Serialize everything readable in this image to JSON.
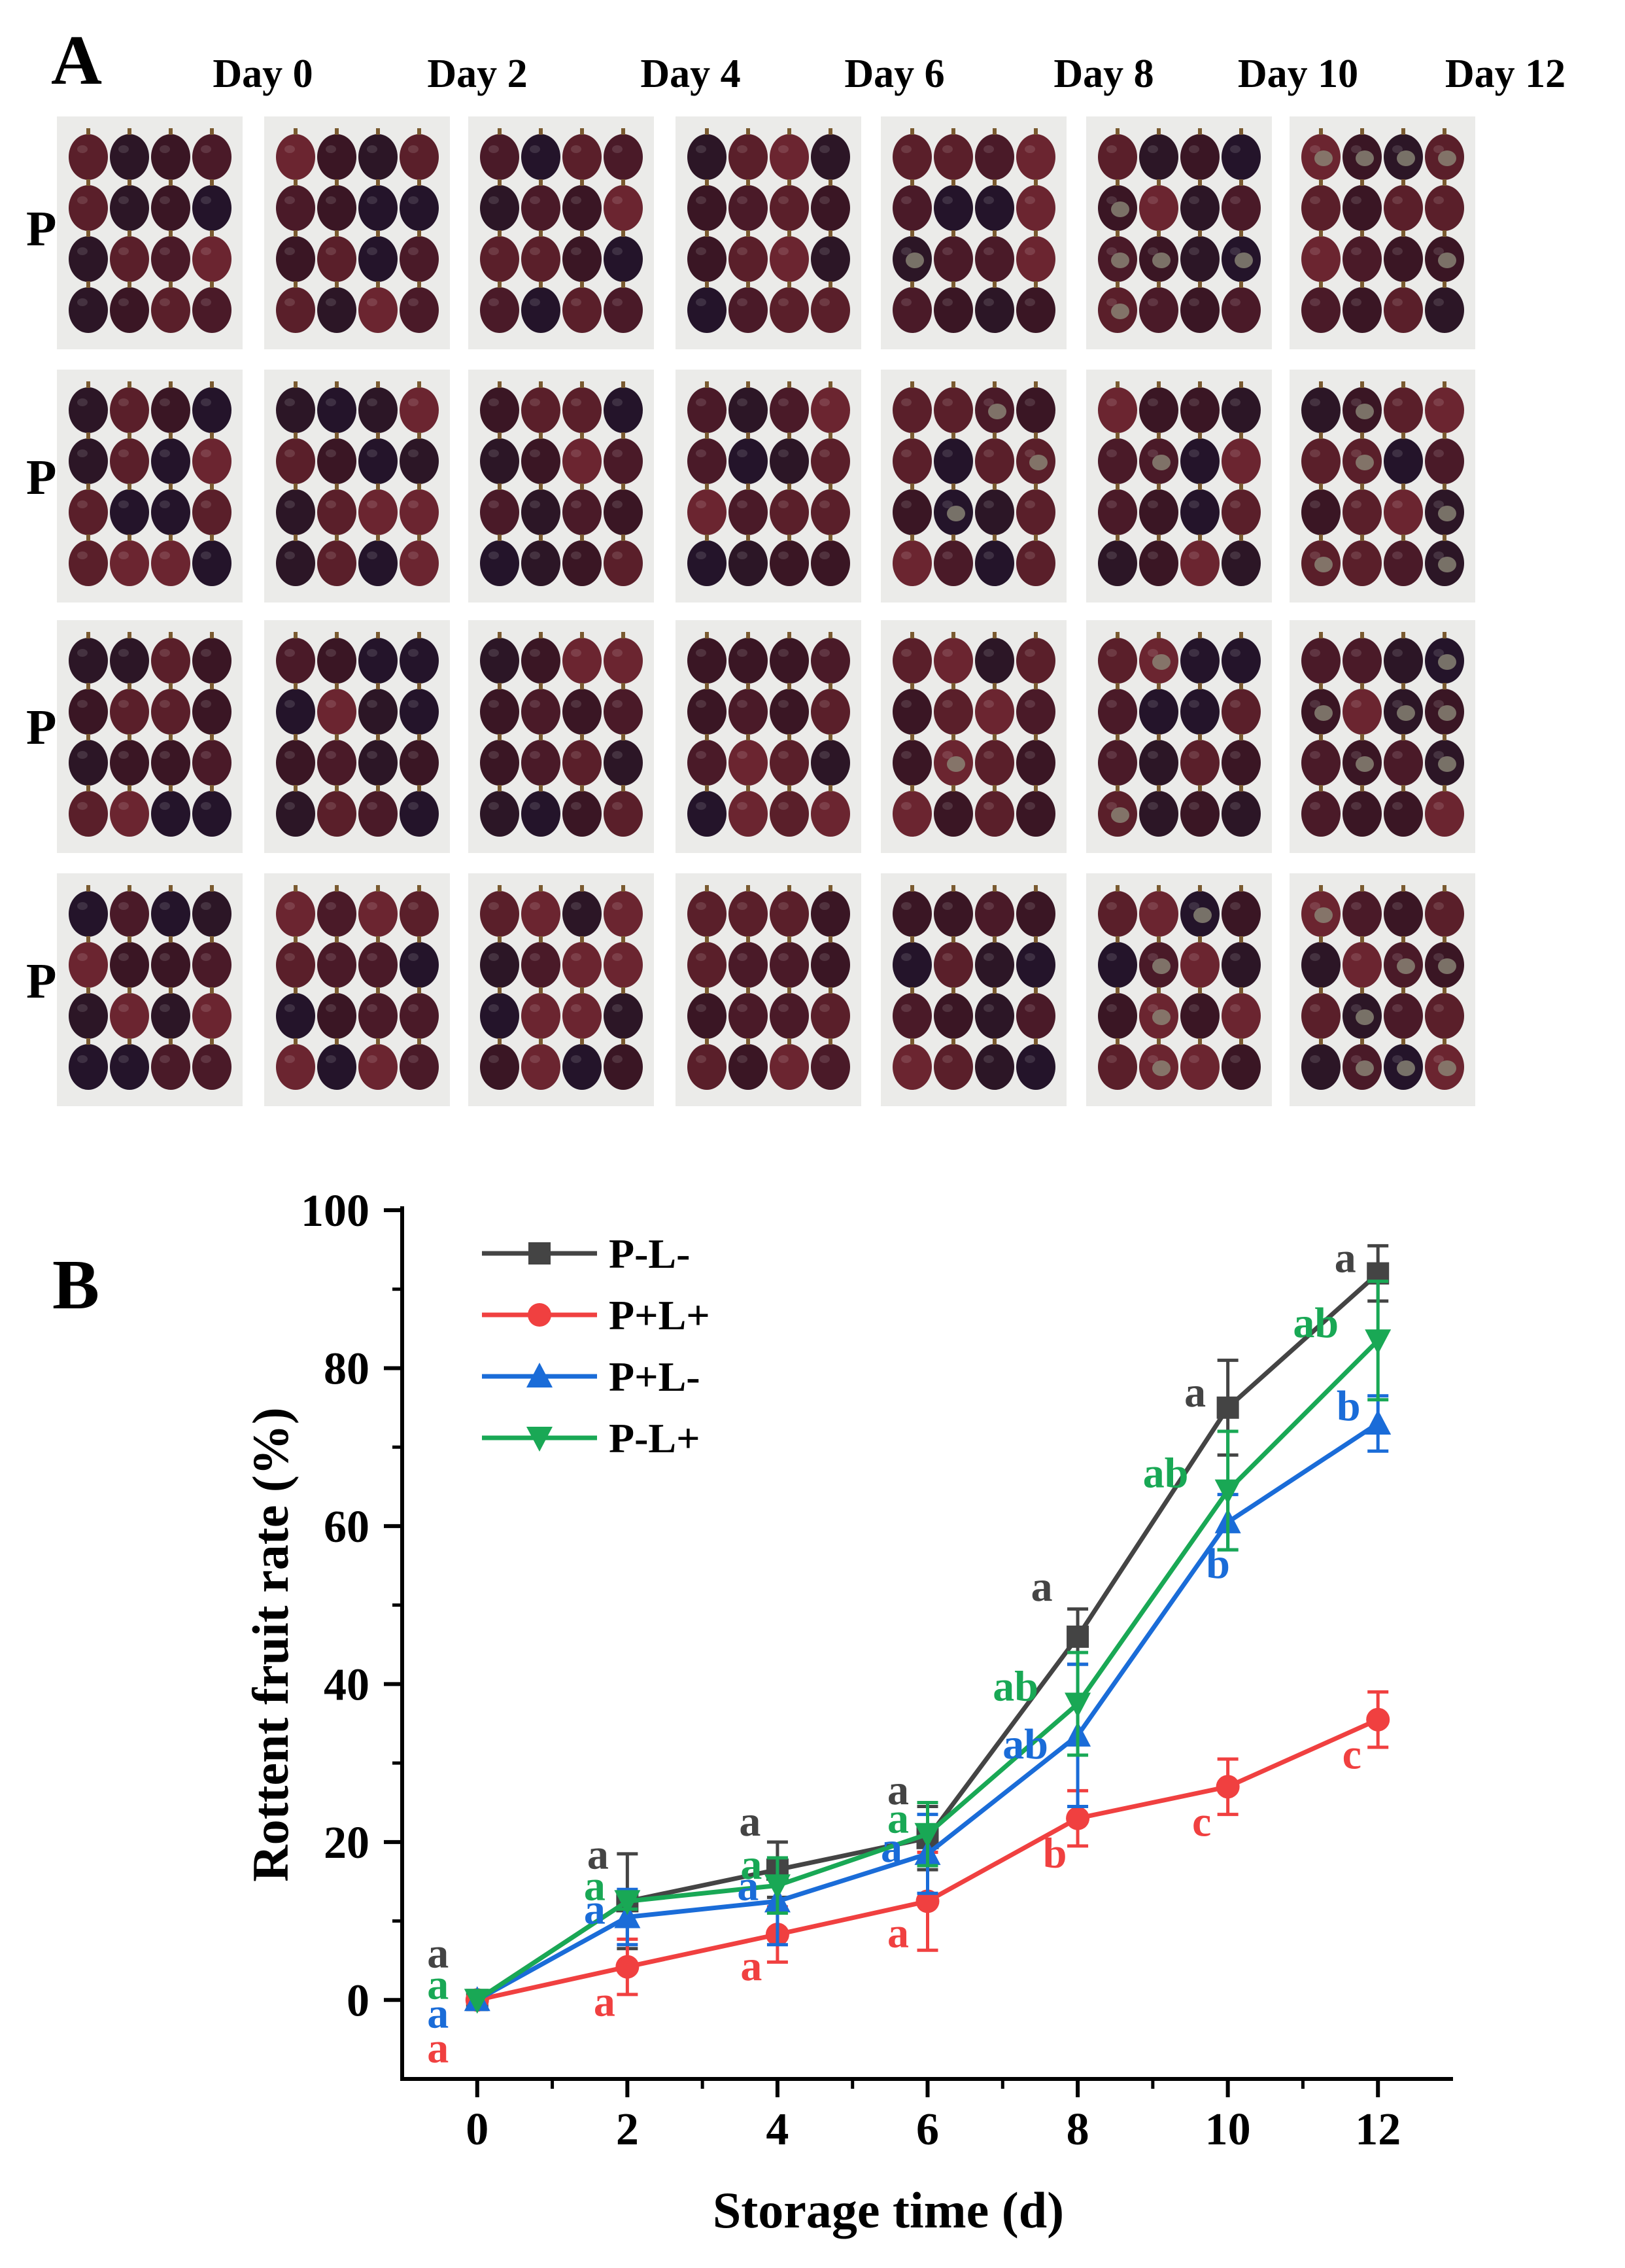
{
  "panel_a": {
    "letter": "A",
    "days": [
      "Day 0",
      "Day 2",
      "Day 4",
      "Day 6",
      "Day 8",
      "Day 10",
      "Day 12"
    ],
    "treatments": [
      "P-L-",
      "P+L+",
      "P+L-",
      "P-L+"
    ],
    "photo_background": "#ebebe9",
    "fruit_colors": [
      "#3a1624",
      "#4a1a28",
      "#5a1f2a",
      "#2c1626",
      "#6b2530",
      "#24142a"
    ]
  },
  "chart_data": {
    "type": "line",
    "panel_letter": "B",
    "title": "",
    "xlabel": "Storage time (d)",
    "ylabel": "Rottent fruit rate (%)",
    "x": [
      0,
      2,
      4,
      6,
      8,
      10,
      12
    ],
    "xlim": [
      -1,
      13
    ],
    "ylim": [
      -10,
      100
    ],
    "yticks": [
      0,
      20,
      40,
      60,
      80,
      100
    ],
    "grid": false,
    "legend_position": "top-left",
    "series": [
      {
        "name": "P-L-",
        "color": "#444444",
        "marker": "square",
        "values": [
          0,
          12.5,
          16.5,
          20.5,
          46,
          75,
          92
        ],
        "errors": [
          0,
          6,
          3.5,
          4,
          3.5,
          6,
          3.5
        ],
        "letters": [
          "a",
          "a",
          "a",
          "a",
          "a",
          "a",
          "a"
        ]
      },
      {
        "name": "P+L+",
        "color": "#f04040",
        "marker": "circle",
        "values": [
          0,
          4.2,
          8.3,
          12.5,
          23,
          27,
          35.5
        ],
        "errors": [
          0,
          3.5,
          3.5,
          6.2,
          3.5,
          3.5,
          3.5
        ],
        "letters": [
          "a",
          "a",
          "a",
          "a",
          "b",
          "c",
          "c"
        ]
      },
      {
        "name": "P+L-",
        "color": "#1a6cd8",
        "marker": "triangle-up",
        "values": [
          0,
          10.5,
          12.5,
          18.5,
          33.5,
          60.5,
          73
        ],
        "errors": [
          0,
          3.5,
          5.5,
          5,
          9,
          3.5,
          3.5
        ],
        "letters": [
          "a",
          "a",
          "a",
          "a",
          "ab",
          "b",
          "b"
        ]
      },
      {
        "name": "P-L+",
        "color": "#19a855",
        "marker": "triangle-down",
        "values": [
          0,
          12.5,
          14.5,
          21,
          37.5,
          64.5,
          83.5
        ],
        "errors": [
          0,
          1,
          3.5,
          4,
          6.5,
          7.5,
          7.5
        ],
        "letters": [
          "a",
          "a",
          "a",
          "a",
          "ab",
          "ab",
          "ab"
        ]
      }
    ]
  }
}
